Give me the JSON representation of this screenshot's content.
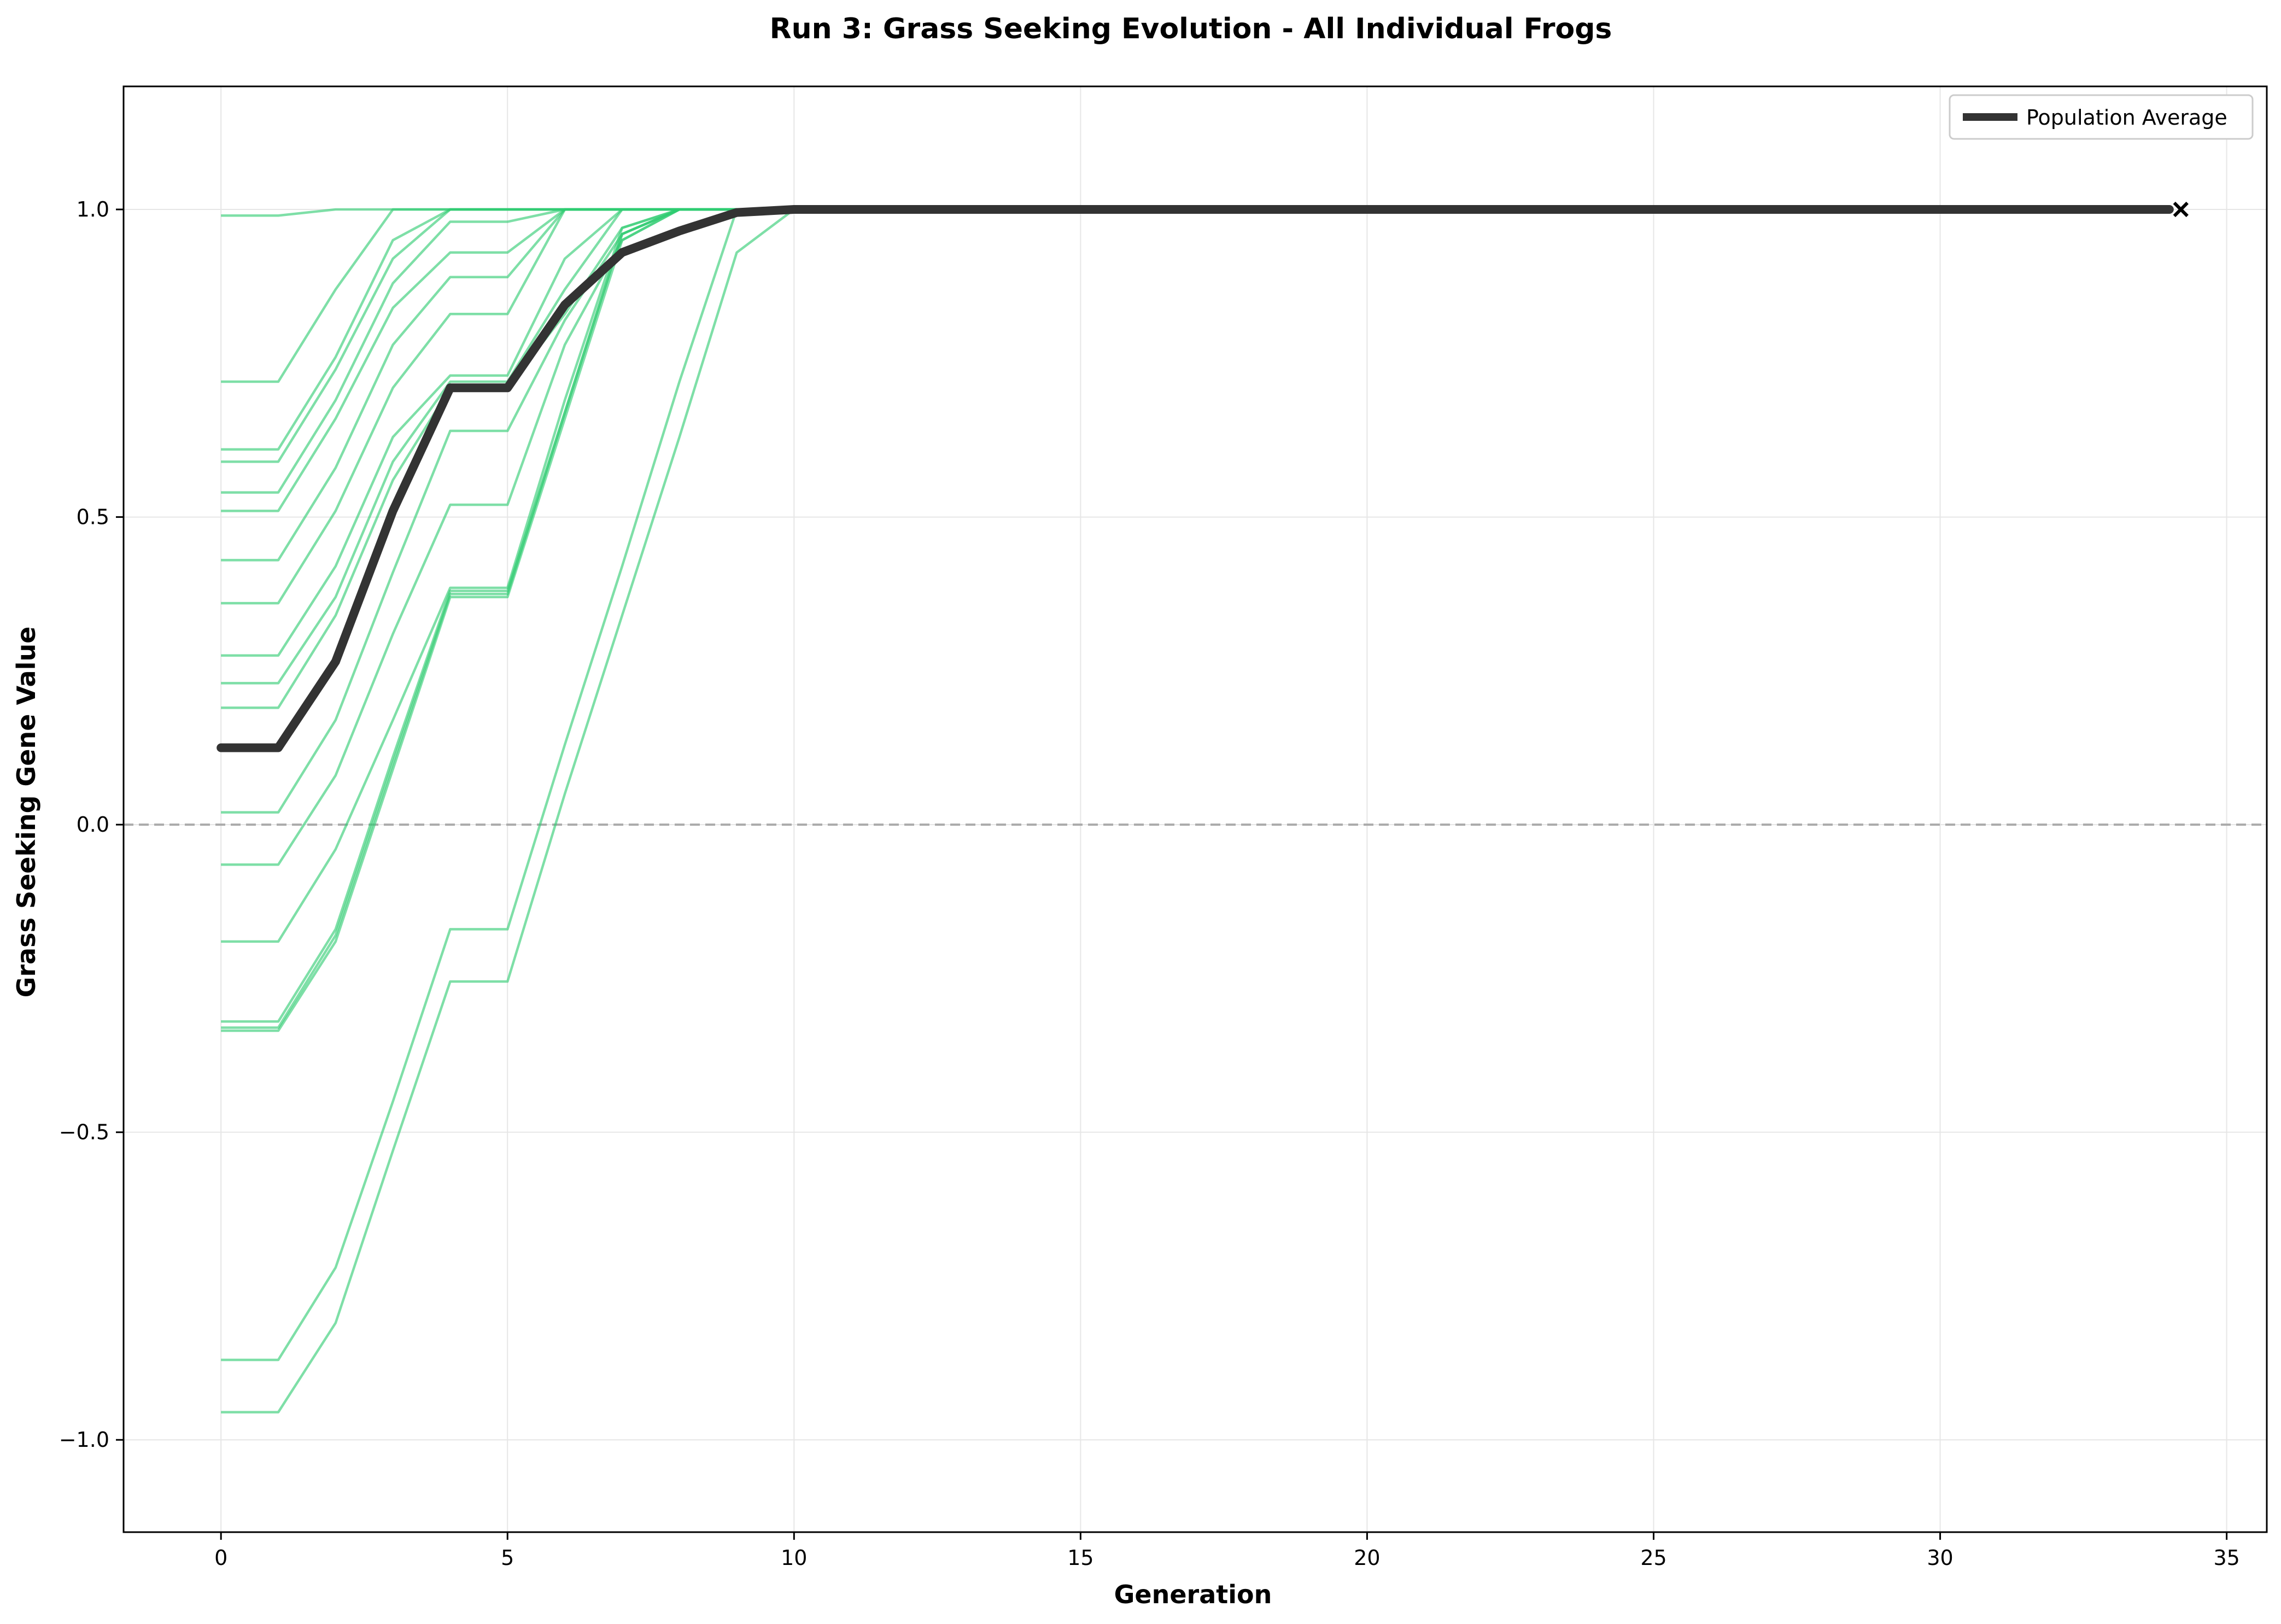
{
  "chart_data": {
    "type": "line",
    "title": "Run 3: Grass Seeking Evolution - All Individual Frogs",
    "xlabel": "Generation",
    "ylabel": "Grass Seeking Gene Value",
    "xlim": [
      -1.7,
      35.7
    ],
    "ylim": [
      -1.15,
      1.2
    ],
    "xticks": [
      0,
      5,
      10,
      15,
      20,
      25,
      30,
      35
    ],
    "xtick_labels": [
      "0",
      "5",
      "10",
      "15",
      "20",
      "25",
      "30",
      "35"
    ],
    "yticks": [
      -1.0,
      -0.5,
      0.0,
      0.5,
      1.0
    ],
    "ytick_labels": [
      "−1.0",
      "−0.5",
      "0.0",
      "0.5",
      "1.0"
    ],
    "grid": true,
    "reference_line": {
      "y": 0.0,
      "style": "dashed",
      "color": "#aaaaaa"
    },
    "legend": {
      "position": "top-right",
      "entries": [
        "Population Average"
      ]
    },
    "colors": {
      "individual": "#2ecc71",
      "average": "#333333",
      "end_marker": "#000000"
    },
    "x": [
      0,
      1,
      2,
      3,
      4,
      5,
      6,
      7,
      8,
      9,
      10,
      34
    ],
    "individuals": [
      [
        0.99,
        0.99,
        1.0,
        1.0,
        1.0,
        1.0,
        1.0,
        1.0,
        1.0,
        1.0,
        1.0,
        1.0
      ],
      [
        0.72,
        0.72,
        0.87,
        1.0,
        1.0,
        1.0,
        1.0,
        1.0,
        1.0,
        1.0,
        1.0,
        1.0
      ],
      [
        0.61,
        0.61,
        0.76,
        0.95,
        1.0,
        1.0,
        1.0,
        1.0,
        1.0,
        1.0,
        1.0,
        1.0
      ],
      [
        0.59,
        0.59,
        0.74,
        0.92,
        1.0,
        1.0,
        1.0,
        1.0,
        1.0,
        1.0,
        1.0,
        1.0
      ],
      [
        0.54,
        0.54,
        0.69,
        0.88,
        0.98,
        0.98,
        1.0,
        1.0,
        1.0,
        1.0,
        1.0,
        1.0
      ],
      [
        0.51,
        0.51,
        0.66,
        0.84,
        0.93,
        0.93,
        1.0,
        1.0,
        1.0,
        1.0,
        1.0,
        1.0
      ],
      [
        0.43,
        0.43,
        0.58,
        0.78,
        0.89,
        0.89,
        1.0,
        1.0,
        1.0,
        1.0,
        1.0,
        1.0
      ],
      [
        0.36,
        0.36,
        0.51,
        0.71,
        0.83,
        0.83,
        1.0,
        1.0,
        1.0,
        1.0,
        1.0,
        1.0
      ],
      [
        0.275,
        0.275,
        0.42,
        0.63,
        0.73,
        0.73,
        0.92,
        1.0,
        1.0,
        1.0,
        1.0,
        1.0
      ],
      [
        0.23,
        0.23,
        0.37,
        0.59,
        0.72,
        0.72,
        0.87,
        1.0,
        1.0,
        1.0,
        1.0,
        1.0
      ],
      [
        0.19,
        0.19,
        0.34,
        0.56,
        0.71,
        0.71,
        0.83,
        0.97,
        1.0,
        1.0,
        1.0,
        1.0
      ],
      [
        0.02,
        0.02,
        0.17,
        0.41,
        0.64,
        0.64,
        0.82,
        0.96,
        1.0,
        1.0,
        1.0,
        1.0
      ],
      [
        -0.065,
        -0.065,
        0.08,
        0.31,
        0.52,
        0.52,
        0.78,
        0.95,
        1.0,
        1.0,
        1.0,
        1.0
      ],
      [
        -0.19,
        -0.19,
        -0.04,
        0.17,
        0.385,
        0.385,
        0.69,
        0.97,
        1.0,
        1.0,
        1.0,
        1.0
      ],
      [
        -0.32,
        -0.32,
        -0.17,
        0.11,
        0.38,
        0.38,
        0.67,
        0.96,
        1.0,
        1.0,
        1.0,
        1.0
      ],
      [
        -0.33,
        -0.33,
        -0.18,
        0.1,
        0.375,
        0.375,
        0.67,
        0.96,
        1.0,
        1.0,
        1.0,
        1.0
      ],
      [
        -0.335,
        -0.335,
        -0.19,
        0.09,
        0.37,
        0.37,
        0.66,
        0.95,
        1.0,
        1.0,
        1.0,
        1.0
      ],
      [
        -0.87,
        -0.87,
        -0.72,
        -0.45,
        -0.17,
        -0.17,
        0.13,
        0.42,
        0.72,
        1.0,
        1.0,
        1.0
      ],
      [
        -0.955,
        -0.955,
        -0.81,
        -0.53,
        -0.255,
        -0.255,
        0.05,
        0.34,
        0.63,
        0.93,
        1.0,
        1.0
      ]
    ],
    "series": [
      {
        "name": "Population Average",
        "values": [
          0.125,
          0.125,
          0.265,
          0.51,
          0.71,
          0.71,
          0.845,
          0.93,
          0.965,
          0.995,
          1.0,
          1.0
        ]
      }
    ],
    "end_marker": {
      "x": 34.2,
      "y": 1.0,
      "symbol": "x"
    }
  }
}
